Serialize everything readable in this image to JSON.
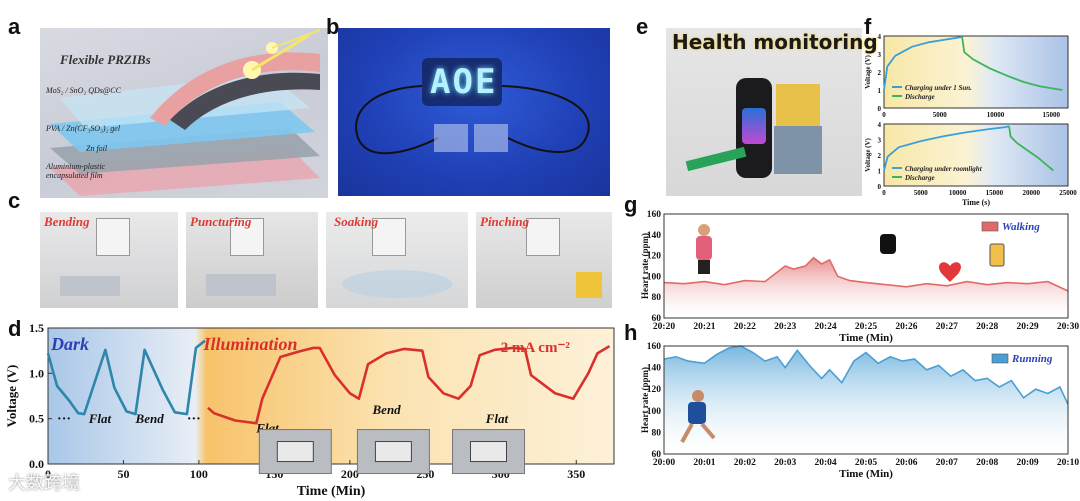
{
  "panel_labels": {
    "a": "a",
    "b": "b",
    "c": "c",
    "d": "d",
    "e": "e",
    "f": "f",
    "g": "g",
    "h": "h"
  },
  "panel_a": {
    "title": "Flexible PRZIBs",
    "layers": [
      "MoS₂ / SnO₂ QDs@CC",
      "PVA / Zn(CF₃SO₃)₂ gel",
      "Zn foil",
      "Aluminium-plastic encapsulated film"
    ]
  },
  "panel_b": {
    "led_text": "AOE"
  },
  "panel_c": {
    "tests": [
      "Bending",
      "Puncturing",
      "Soaking",
      "Pinching"
    ]
  },
  "panel_e": {
    "title": "Health monitoring"
  },
  "watermark": "大数跨境",
  "chart_data": [
    {
      "id": "d",
      "type": "line",
      "xlabel": "Time (Min)",
      "ylabel": "Voltage (V)",
      "xlim": [
        0,
        375
      ],
      "ylim": [
        0,
        1.5
      ],
      "xticks": [
        0,
        50,
        100,
        150,
        200,
        250,
        300,
        350
      ],
      "yticks": [
        0.0,
        0.5,
        1.0,
        1.5
      ],
      "region_labels": [
        "Dark",
        "Illumination"
      ],
      "current_label": "2 mA cm⁻²",
      "state_labels": [
        "Flat",
        "Bend",
        "Flat",
        "Bend",
        "Flat"
      ],
      "ellipses": [
        "···",
        "···"
      ],
      "series": [
        {
          "segment": "dark",
          "color": "#2e86ab",
          "x": [
            0,
            6,
            14,
            20,
            24,
            38,
            44,
            52,
            58,
            64,
            76,
            84,
            92,
            98,
            104
          ],
          "y": [
            1.22,
            0.86,
            0.7,
            0.56,
            0.55,
            1.26,
            0.84,
            0.58,
            0.55,
            1.26,
            0.82,
            0.57,
            0.55,
            1.28,
            1.36
          ]
        },
        {
          "segment": "illumination",
          "color": "#d9302c",
          "x": [
            106,
            110,
            124,
            138,
            142,
            154,
            166,
            176,
            180,
            190,
            200,
            206,
            212,
            224,
            236,
            248,
            252,
            262,
            272,
            280,
            286,
            296,
            308,
            316,
            320,
            336,
            348,
            358,
            364,
            372
          ],
          "y": [
            0.62,
            0.56,
            0.48,
            0.45,
            0.72,
            1.18,
            1.24,
            1.28,
            1.28,
            0.98,
            0.78,
            0.72,
            1.1,
            1.22,
            1.27,
            1.25,
            0.96,
            0.78,
            0.72,
            0.86,
            1.2,
            1.26,
            1.28,
            1.27,
            0.98,
            0.78,
            0.72,
            1.0,
            1.22,
            1.3
          ]
        }
      ]
    },
    {
      "id": "f1",
      "type": "line",
      "xlabel": "",
      "ylabel": "Voltage (V)",
      "xlim": [
        0,
        16500
      ],
      "ylim": [
        0,
        4
      ],
      "xticks": [
        0,
        5000,
        10000,
        15000
      ],
      "yticks": [
        0,
        1,
        2,
        3,
        4
      ],
      "series": [
        {
          "name": "Charging under 1 Sun.",
          "color": "#3aa0d8",
          "x": [
            0,
            300,
            1000,
            2500,
            4000,
            5500,
            6500,
            7000
          ],
          "y": [
            1.0,
            2.3,
            2.9,
            3.4,
            3.65,
            3.8,
            3.9,
            3.95
          ]
        },
        {
          "name": "Discharge",
          "color": "#3bb55a",
          "x": [
            7000,
            7200,
            8000,
            9500,
            11000,
            12500,
            14000,
            15500,
            16000
          ],
          "y": [
            3.95,
            3.1,
            2.7,
            2.2,
            1.8,
            1.45,
            1.2,
            1.05,
            1.0
          ]
        }
      ]
    },
    {
      "id": "f2",
      "type": "line",
      "xlabel": "Time (s)",
      "ylabel": "Voltage (V)",
      "xlim": [
        0,
        25000
      ],
      "ylim": [
        0,
        4
      ],
      "xticks": [
        0,
        5000,
        10000,
        15000,
        20000,
        25000
      ],
      "yticks": [
        0,
        1,
        2,
        3,
        4
      ],
      "series": [
        {
          "name": "Charging under roomlight",
          "color": "#3aa0d8",
          "x": [
            0,
            500,
            2000,
            5000,
            8000,
            11000,
            14000,
            16500,
            17000
          ],
          "y": [
            1.0,
            1.9,
            2.5,
            2.9,
            3.2,
            3.45,
            3.65,
            3.8,
            3.85
          ]
        },
        {
          "name": "Discharge",
          "color": "#3bb55a",
          "x": [
            17000,
            17200,
            18000,
            19500,
            21000,
            22000,
            23000
          ],
          "y": [
            3.85,
            3.2,
            2.8,
            2.3,
            1.8,
            1.4,
            1.0
          ]
        }
      ]
    },
    {
      "id": "g",
      "type": "area",
      "xlabel": "Time (Min)",
      "ylabel": "Heart rate (ppm)",
      "ylim": [
        60,
        160
      ],
      "yticks": [
        60,
        80,
        100,
        120,
        140,
        160
      ],
      "xticks": [
        "20:20",
        "20:21",
        "20:22",
        "20:23",
        "20:24",
        "20:25",
        "20:26",
        "20:27",
        "20:28",
        "20:29",
        "20:30"
      ],
      "series": [
        {
          "name": "Walking",
          "color": "#e06a6a",
          "x": [
            0,
            0.5,
            1,
            1.5,
            2,
            2.5,
            2.8,
            3,
            3.2,
            3.5,
            3.7,
            3.9,
            4.1,
            4.3,
            4.6,
            5,
            5.5,
            6,
            6.5,
            7,
            7.5,
            8,
            8.5,
            9,
            9.5,
            10
          ],
          "y": [
            94,
            93,
            95,
            92,
            96,
            95,
            104,
            110,
            107,
            110,
            118,
            112,
            116,
            100,
            96,
            94,
            92,
            90,
            93,
            91,
            95,
            92,
            94,
            93,
            95,
            86
          ]
        }
      ]
    },
    {
      "id": "h",
      "type": "area",
      "xlabel": "Time (Min)",
      "ylabel": "Heart rate (ppm)",
      "ylim": [
        60,
        160
      ],
      "yticks": [
        60,
        80,
        100,
        120,
        140,
        160
      ],
      "xticks": [
        "20:00",
        "20:01",
        "20:02",
        "20:03",
        "20:04",
        "20:05",
        "20:06",
        "20:07",
        "20:08",
        "20:09",
        "20:10"
      ],
      "series": [
        {
          "name": "Running",
          "color": "#4a9fd4",
          "x": [
            0,
            0.3,
            0.6,
            1,
            1.3,
            1.6,
            1.9,
            2.2,
            2.5,
            2.8,
            3,
            3.3,
            3.6,
            3.9,
            4.1,
            4.4,
            4.7,
            5,
            5.3,
            5.6,
            5.9,
            6.2,
            6.5,
            6.8,
            7.1,
            7.4,
            7.7,
            8,
            8.3,
            8.6,
            8.9,
            9.2,
            9.5,
            9.8,
            10
          ],
          "y": [
            148,
            150,
            146,
            144,
            152,
            158,
            160,
            154,
            146,
            150,
            140,
            156,
            142,
            130,
            138,
            126,
            146,
            154,
            144,
            150,
            146,
            148,
            138,
            142,
            132,
            138,
            128,
            130,
            122,
            128,
            112,
            120,
            116,
            122,
            106
          ]
        }
      ]
    }
  ]
}
